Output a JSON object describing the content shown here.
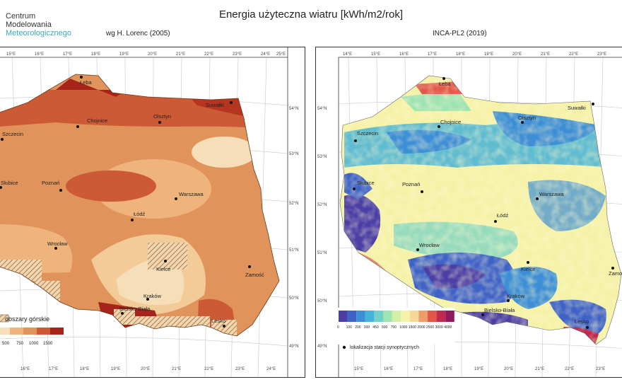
{
  "title": "Energia użyteczna wiatru [kWh/m2/rok]",
  "brand": [
    "Centrum",
    "Modelowania",
    "Meteorologicznego"
  ],
  "left_map": {
    "subtitle": "wg H. Lorenc (2005)",
    "top_ticks": [
      "15°E",
      "16°E",
      "17°E",
      "18°E",
      "19°E",
      "20°E",
      "21°E",
      "22°E",
      "23°E",
      "24°E",
      "25°E"
    ],
    "bottom_ticks": [
      "16°E",
      "17°E",
      "18°E",
      "19°E",
      "20°E",
      "21°E",
      "22°E",
      "23°E",
      "24°E"
    ],
    "right_ticks": [
      "54°N",
      "53°N",
      "52°N",
      "51°N",
      "50°N",
      "49°N"
    ],
    "cities": [
      "Łeba",
      "Suwałki",
      "Olsztyn",
      "Chojnice",
      "Szczecin",
      "Słubice",
      "Poznań",
      "Warszawa",
      "Łódź",
      "Wrocław",
      "Kielce",
      "Zamość",
      "Kraków",
      "Bielsko-Biała",
      "Lesko"
    ],
    "legend": {
      "label": "obszary górskie",
      "values": [
        "500",
        "750",
        "1000",
        "1500"
      ],
      "colors": [
        "#f6deb8",
        "#eeb47c",
        "#e1935c",
        "#cc5a34",
        "#a6241a"
      ]
    }
  },
  "right_map": {
    "subtitle": "INCA-PL2 (2019)",
    "top_ticks": [
      "14°E",
      "15°E",
      "16°E",
      "17°E",
      "18°E",
      "19°E",
      "20°E",
      "21°E",
      "22°E",
      "23°E"
    ],
    "bottom_ticks": [
      "15°E",
      "16°E",
      "17°E",
      "18°E",
      "19°E",
      "20°E",
      "21°E",
      "22°E",
      "23°E"
    ],
    "left_ticks": [
      "54°N",
      "53°N",
      "52°N",
      "51°N",
      "50°N",
      "49°N"
    ],
    "cities": [
      "Łeba",
      "Suwałki",
      "Olsztyn",
      "Chojnice",
      "Szczecin",
      "Słubice",
      "Poznań",
      "Warszawa",
      "Łódź",
      "Wrocław",
      "Kielce",
      "Zamo",
      "Kraków",
      "Bielsko-Biała",
      "Lesko"
    ],
    "legend": {
      "values": [
        "0",
        "100",
        "200",
        "300",
        "450",
        "500",
        "750",
        "1000",
        "1500",
        "2000",
        "2500",
        "3000",
        "4000"
      ],
      "colors": [
        "#4b3ea6",
        "#3f62c7",
        "#3c8ed6",
        "#45b3d8",
        "#6fd1c8",
        "#9ee3b3",
        "#d2efa8",
        "#f5f2a8",
        "#f6d79a",
        "#ef9c6b",
        "#e1574a",
        "#c02a4e",
        "#8e1a5c"
      ],
      "station_label": "lokalizacja stacji synoptycznych"
    }
  }
}
